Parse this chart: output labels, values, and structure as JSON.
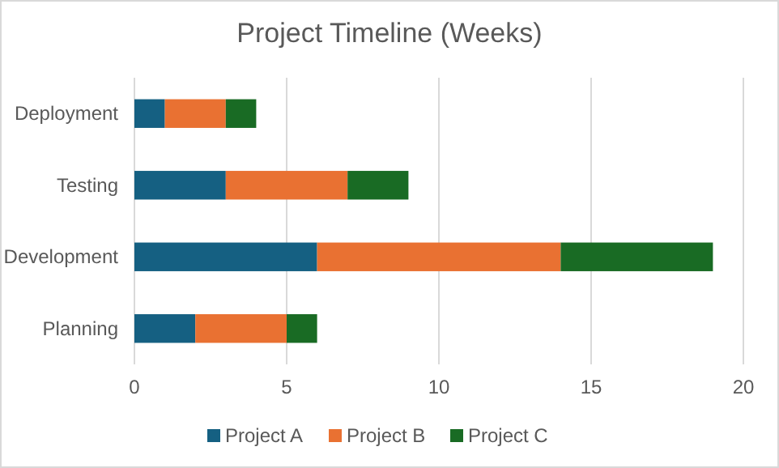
{
  "chart_data": {
    "type": "bar",
    "title": "Project Timeline (Weeks)",
    "orientation": "horizontal",
    "stacked": true,
    "categories": [
      "Deployment",
      "Testing",
      "Development",
      "Planning"
    ],
    "series": [
      {
        "name": "Project A",
        "color": "#156082",
        "values": [
          1,
          3,
          6,
          2
        ]
      },
      {
        "name": "Project B",
        "color": "#e97132",
        "values": [
          2,
          4,
          8,
          3
        ]
      },
      {
        "name": "Project C",
        "color": "#196b24",
        "values": [
          1,
          2,
          5,
          1
        ]
      }
    ],
    "xlim": [
      0,
      20
    ],
    "xticks": [
      0,
      5,
      10,
      15,
      20
    ],
    "grid": "x",
    "legend": "bottom"
  }
}
